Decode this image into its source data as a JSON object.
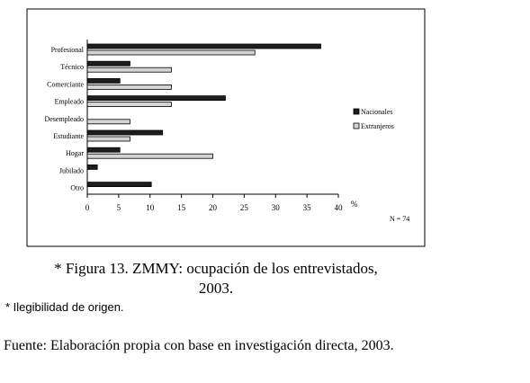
{
  "chart_data": {
    "type": "bar",
    "orientation": "horizontal",
    "categories": [
      "Profesional",
      "Técnico",
      "Comerciante",
      "Empleado",
      "Desempleado",
      "Estudiante",
      "Hogar",
      "Jubilado",
      "Otro"
    ],
    "series": [
      {
        "name": "Nacionales",
        "color": "#1e1e1e",
        "values": [
          37.2,
          6.8,
          5.2,
          22.0,
          null,
          12.0,
          5.2,
          1.6,
          10.2
        ]
      },
      {
        "name": "Extranjeros",
        "color": "#d4d4d4",
        "values": [
          26.7,
          13.4,
          13.4,
          13.4,
          6.8,
          6.8,
          20.0,
          null,
          null
        ]
      }
    ],
    "xlim": [
      0,
      40
    ],
    "xticks": [
      0,
      5,
      10,
      15,
      20,
      25,
      30,
      35,
      40
    ],
    "x_label": "%",
    "annotation": "N = 74",
    "legend_position": "right",
    "grid": false
  },
  "caption": [
    "* Figura 13. ZMMY: ocupación de los entrevistados,",
    "2003."
  ],
  "note": "* Ilegibilidad de origen.",
  "source": "Fuente: Elaboración propia con base en investigación directa, 2003."
}
